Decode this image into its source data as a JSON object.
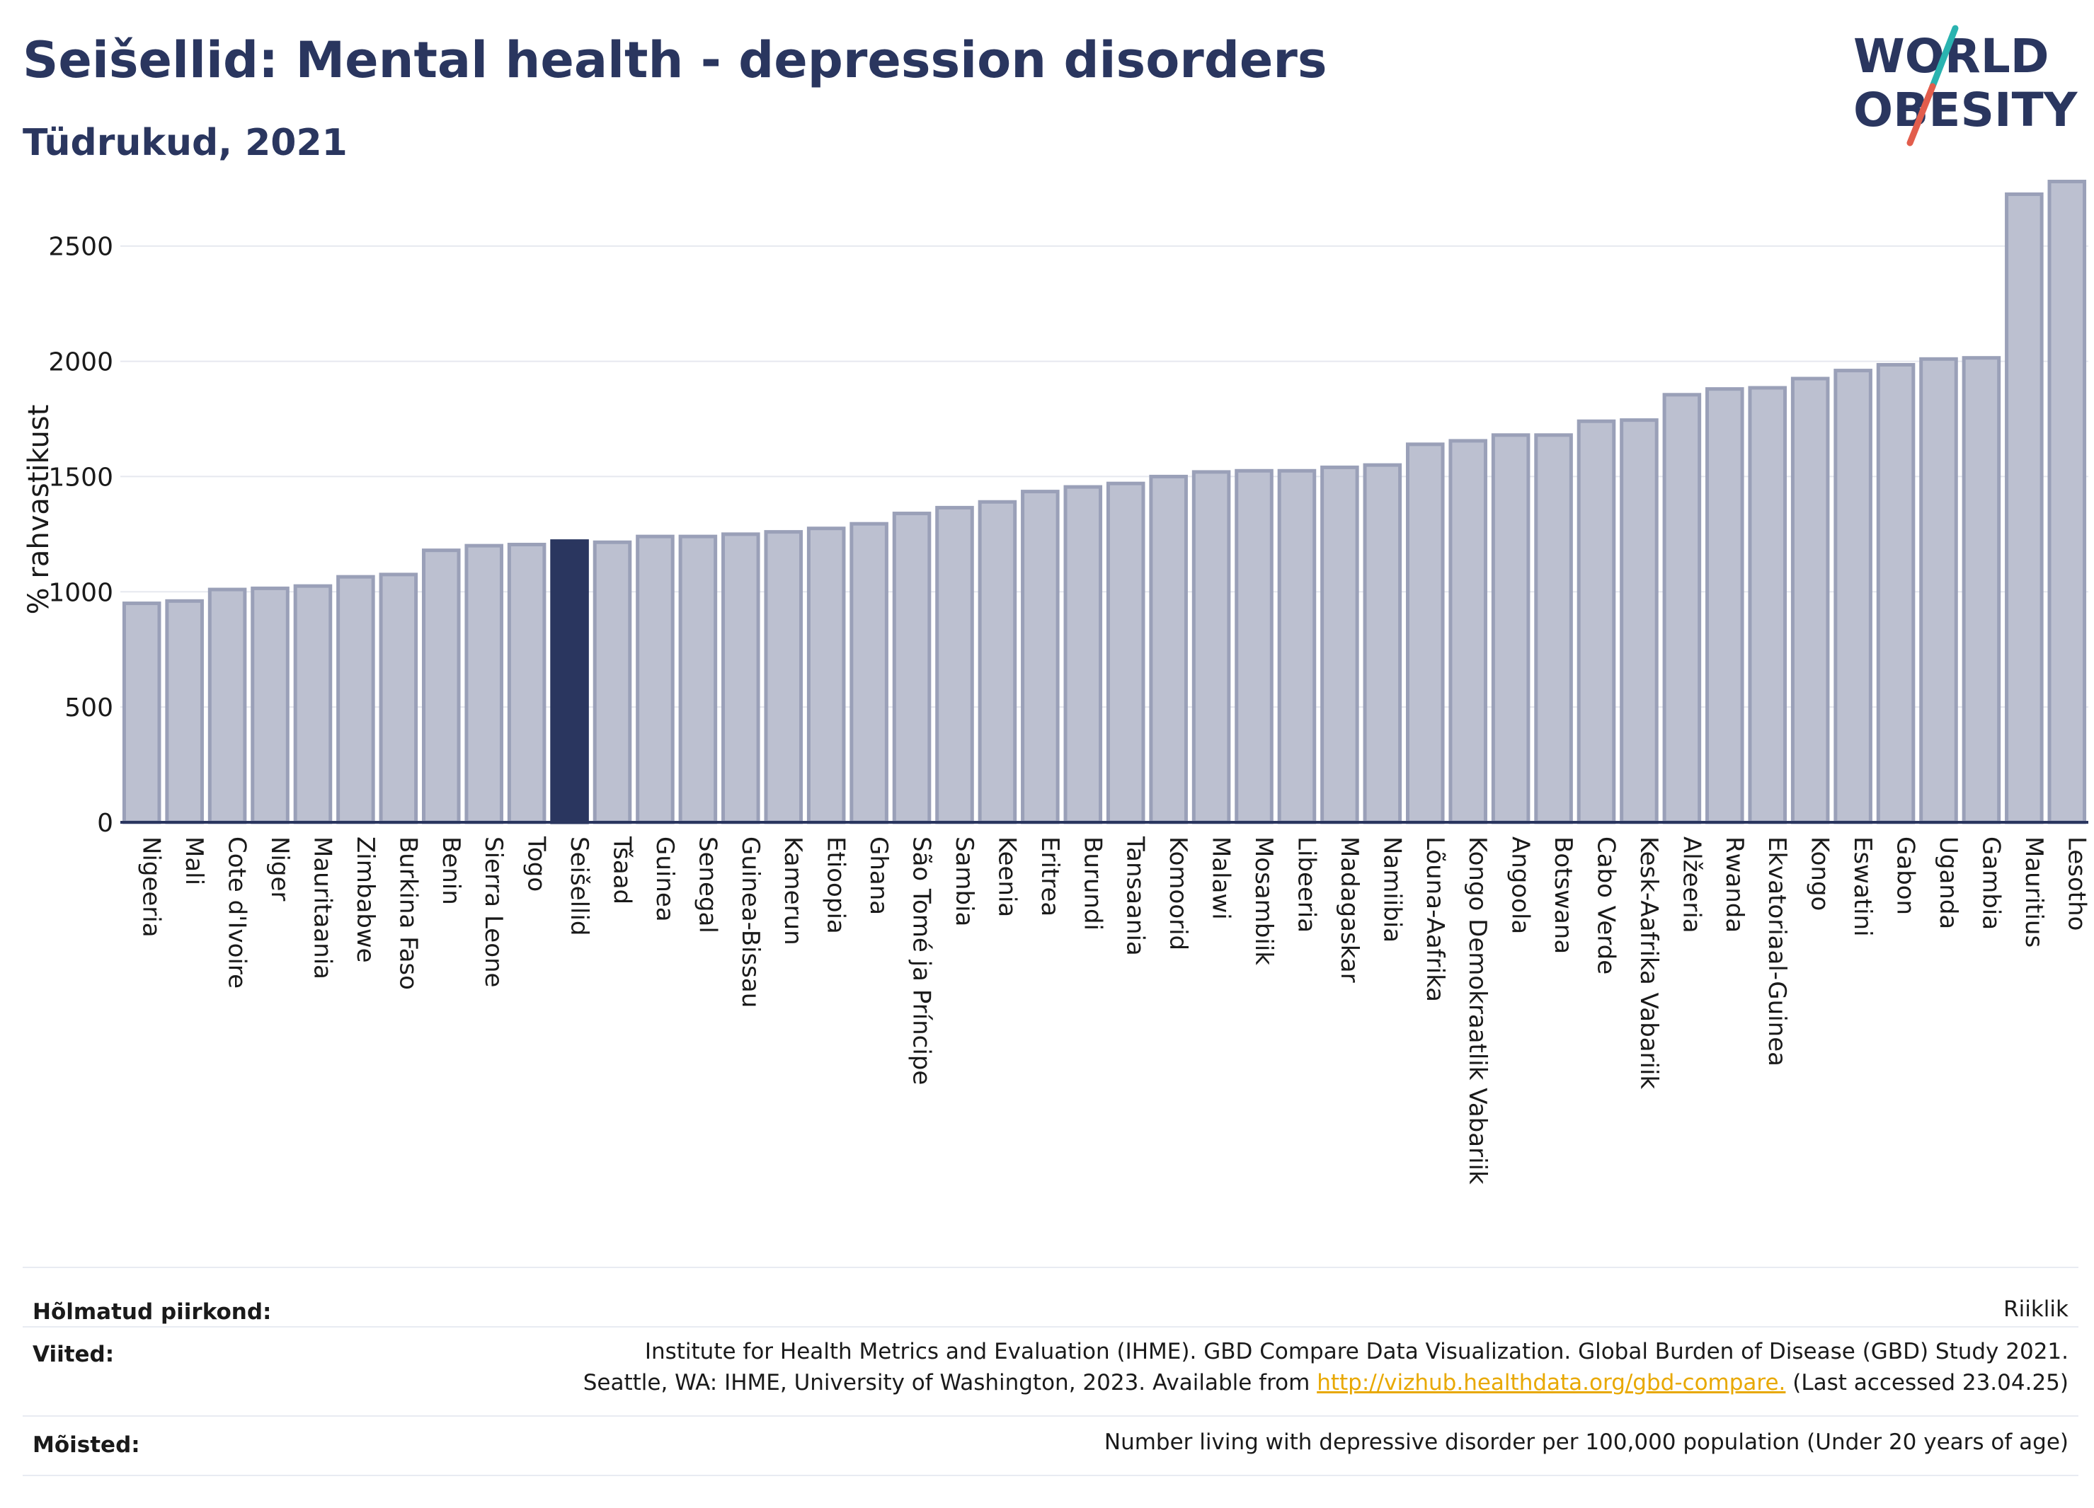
{
  "title": "Seišellid: Mental health - depression disorders",
  "subtitle": "Tüdrukud, 2021",
  "logo": {
    "line1": "WORLD",
    "line2": "OBESITY",
    "accent_teal": "#2ab3b0",
    "accent_red": "#e25d4c"
  },
  "colors": {
    "bar": "#bcc0d0",
    "bar_border": "#9aa0b8",
    "highlight": "#2a365f",
    "axis": "#2a365f",
    "grid": "#e6e8ef"
  },
  "chart_data": {
    "type": "bar",
    "ylabel": "% rahvastikust",
    "ylim": [
      0,
      2800
    ],
    "yticks": [
      0,
      500,
      1000,
      1500,
      2000,
      2500
    ],
    "highlight": "Seišellid",
    "categories": [
      "Nigeeria",
      "Mali",
      "Cote d'Ivoire",
      "Niger",
      "Mauritaania",
      "Zimbabwe",
      "Burkina Faso",
      "Benin",
      "Sierra Leone",
      "Togo",
      "Seišellid",
      "Tšaad",
      "Guinea",
      "Senegal",
      "Guinea-Bissau",
      "Kamerun",
      "Etioopia",
      "Ghana",
      "São Tomé ja Príncipe",
      "Sambia",
      "Keenia",
      "Eritrea",
      "Burundi",
      "Tansaania",
      "Komoorid",
      "Malawi",
      "Mosambiik",
      "Libeeria",
      "Madagaskar",
      "Namiibia",
      "Lõuna-Aafrika",
      "Kongo Demokraatlik Vabariik",
      "Angoola",
      "Botswana",
      "Cabo Verde",
      "Kesk-Aafrika Vabariik",
      "Alžeeria",
      "Rwanda",
      "Ekvatoriaal-Guinea",
      "Kongo",
      "Eswatini",
      "Gabon",
      "Uganda",
      "Gambia",
      "Mauritius",
      "Lesotho"
    ],
    "values": [
      950,
      960,
      1010,
      1015,
      1025,
      1065,
      1075,
      1180,
      1200,
      1205,
      1220,
      1215,
      1240,
      1240,
      1250,
      1260,
      1275,
      1295,
      1340,
      1365,
      1390,
      1435,
      1455,
      1470,
      1500,
      1520,
      1525,
      1525,
      1540,
      1550,
      1640,
      1655,
      1680,
      1680,
      1740,
      1745,
      1855,
      1880,
      1885,
      1925,
      1960,
      1985,
      2010,
      2015,
      2725,
      2780
    ]
  },
  "footer": {
    "rows": [
      {
        "label": "Hõlmatud piirkond:",
        "value": "Riiklik"
      },
      {
        "label": "Viited:",
        "value_line1": "Institute for Health Metrics and Evaluation (IHME). GBD Compare Data Visualization. Global Burden of Disease (GBD) Study 2021.",
        "value_line2_pre": "Seattle, WA: IHME, University of Washington, 2023. Available from ",
        "link": "http://vizhub.healthdata.org/gbd-compare.",
        "value_line2_post": " (Last accessed 23.04.25)"
      },
      {
        "label": "Mõisted:",
        "value": "Number living with depressive disorder per 100,000 population (Under 20 years of age)"
      }
    ]
  }
}
